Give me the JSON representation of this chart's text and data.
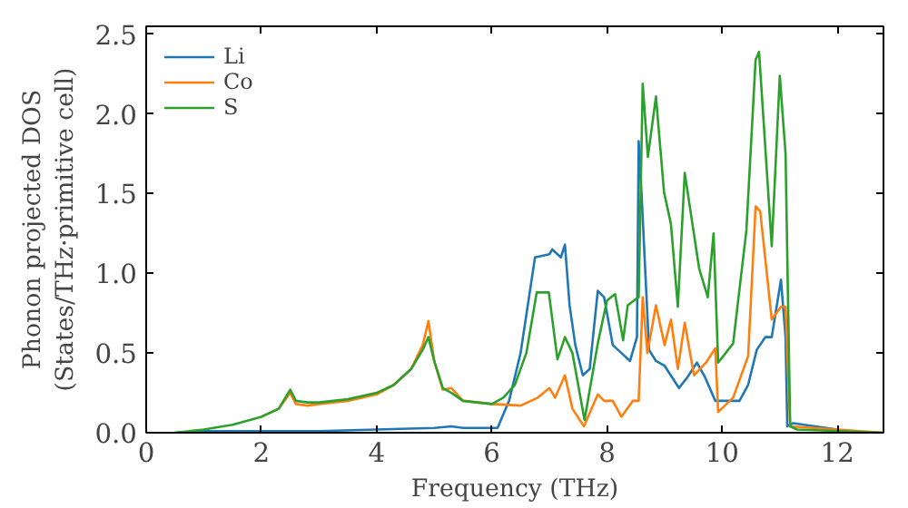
{
  "chart_data": {
    "type": "line",
    "xlabel": "Frequency (THz)",
    "ylabel": "Phonon projected DOS\n(States/THz·primitive cell)",
    "xlim": [
      0,
      12.8
    ],
    "ylim": [
      0,
      2.55
    ],
    "xticks": [
      0,
      2,
      4,
      6,
      8,
      10,
      12
    ],
    "yticks": [
      {
        "value": 0,
        "label": "0.0"
      },
      0.5,
      {
        "value": 1,
        "label": "1.0"
      },
      1.5,
      {
        "value": 2,
        "label": "2.0"
      },
      2.5
    ],
    "grid": false,
    "legend": "top left",
    "marker": "none",
    "line_style": "solid",
    "series": [
      {
        "name": "Li",
        "color": "#1f77b4",
        "x": [
          0.5,
          1,
          2,
          3,
          4,
          5,
          5.3,
          5.5,
          6.1,
          6.3,
          6.5,
          6.75,
          7.0,
          7.05,
          7.2,
          7.27,
          7.35,
          7.45,
          7.58,
          7.7,
          7.84,
          7.95,
          8.1,
          8.25,
          8.4,
          8.52,
          8.55,
          8.6,
          8.73,
          8.85,
          9.0,
          9.25,
          9.4,
          9.56,
          9.7,
          9.88,
          10.0,
          10.3,
          10.45,
          10.6,
          10.75,
          10.86,
          11.02,
          11.1,
          11.13,
          11.23,
          12.0
        ],
        "values": [
          0.0,
          0.01,
          0.01,
          0.01,
          0.02,
          0.03,
          0.04,
          0.03,
          0.03,
          0.2,
          0.5,
          1.1,
          1.12,
          1.15,
          1.1,
          1.18,
          0.8,
          0.55,
          0.36,
          0.4,
          0.89,
          0.85,
          0.55,
          0.5,
          0.45,
          0.6,
          1.83,
          1.5,
          0.52,
          0.45,
          0.42,
          0.28,
          0.35,
          0.44,
          0.35,
          0.2,
          0.2,
          0.2,
          0.3,
          0.52,
          0.6,
          0.6,
          0.96,
          0.6,
          0.04,
          0.06,
          0.02
        ]
      },
      {
        "name": "Co",
        "color": "#ff7f0e",
        "x": [
          2,
          2.3,
          2.5,
          2.6,
          2.8,
          3,
          3.5,
          4,
          4.3,
          4.6,
          4.8,
          4.9,
          5.0,
          5.15,
          5.3,
          5.5,
          6.0,
          6.5,
          6.8,
          7.0,
          7.1,
          7.27,
          7.4,
          7.6,
          7.84,
          7.95,
          8.1,
          8.25,
          8.45,
          8.55,
          8.62,
          8.7,
          8.85,
          9.0,
          9.11,
          9.23,
          9.35,
          9.51,
          9.72,
          9.88,
          9.93,
          10.19,
          10.45,
          10.58,
          10.66,
          10.86,
          11.02,
          11.1,
          11.18,
          12.8
        ],
        "values": [
          0.1,
          0.15,
          0.25,
          0.18,
          0.17,
          0.18,
          0.2,
          0.24,
          0.3,
          0.4,
          0.55,
          0.7,
          0.45,
          0.27,
          0.28,
          0.2,
          0.18,
          0.17,
          0.22,
          0.28,
          0.22,
          0.36,
          0.15,
          0.04,
          0.24,
          0.2,
          0.2,
          0.1,
          0.2,
          0.2,
          0.85,
          0.5,
          0.8,
          0.55,
          0.71,
          0.4,
          0.69,
          0.36,
          0.44,
          0.53,
          0.13,
          0.22,
          0.48,
          1.42,
          1.39,
          0.71,
          0.79,
          0.79,
          0.04,
          0.0
        ]
      },
      {
        "name": "S",
        "color": "#2ca02c",
        "x": [
          0.5,
          1,
          1.5,
          2,
          2.3,
          2.5,
          2.6,
          2.8,
          3,
          3.5,
          4,
          4.3,
          4.6,
          4.8,
          4.9,
          5.0,
          5.15,
          5.3,
          5.5,
          6.0,
          6.2,
          6.4,
          6.6,
          6.78,
          6.99,
          7.14,
          7.27,
          7.4,
          7.61,
          7.84,
          8.0,
          8.14,
          8.28,
          8.36,
          8.47,
          8.55,
          8.62,
          8.71,
          8.85,
          8.99,
          9.11,
          9.23,
          9.35,
          9.6,
          9.75,
          9.85,
          9.93,
          10.19,
          10.42,
          10.58,
          10.64,
          10.86,
          11.0,
          11.1,
          11.18,
          11.3,
          12.8
        ],
        "values": [
          0.0,
          0.02,
          0.05,
          0.1,
          0.15,
          0.27,
          0.2,
          0.19,
          0.19,
          0.21,
          0.25,
          0.3,
          0.4,
          0.52,
          0.6,
          0.45,
          0.28,
          0.25,
          0.2,
          0.18,
          0.22,
          0.3,
          0.5,
          0.88,
          0.88,
          0.46,
          0.6,
          0.5,
          0.08,
          0.56,
          0.83,
          0.87,
          0.58,
          0.8,
          0.83,
          0.85,
          2.19,
          1.73,
          2.11,
          1.51,
          1.31,
          0.79,
          1.63,
          1.03,
          0.85,
          1.25,
          0.44,
          0.56,
          1.27,
          2.34,
          2.39,
          1.17,
          2.24,
          1.75,
          0.04,
          0.02,
          0.0
        ]
      }
    ]
  }
}
